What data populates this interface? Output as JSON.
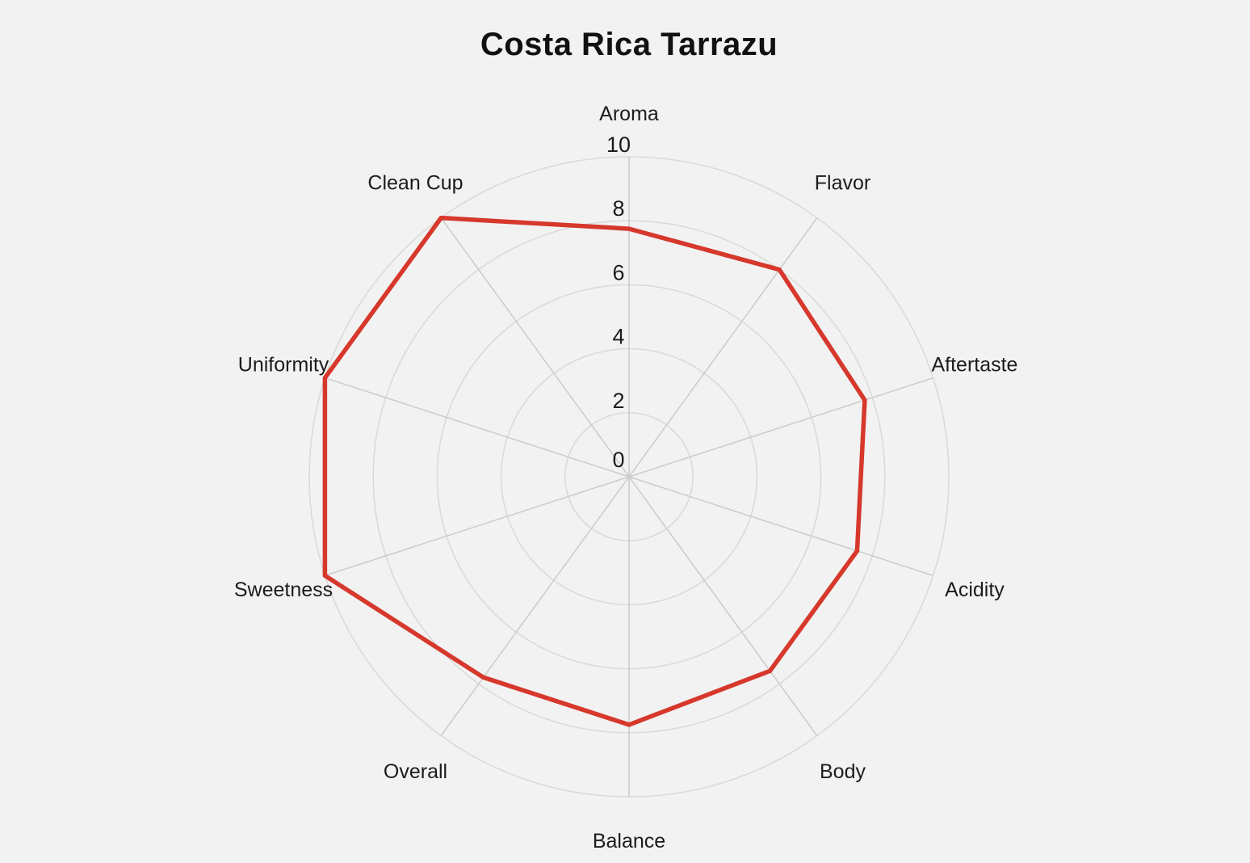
{
  "chart_data": {
    "type": "radar",
    "title": "Costa Rica Tarrazu",
    "categories": [
      "Aroma",
      "Flavor",
      "Aftertaste",
      "Acidity",
      "Body",
      "Balance",
      "Overall",
      "Sweetness",
      "Uniformity",
      "Clean Cup"
    ],
    "series": [
      {
        "name": "Costa Rica Tarrazu",
        "values": [
          7.75,
          8,
          7.75,
          7.5,
          7.5,
          7.75,
          7.75,
          10,
          10,
          10
        ]
      }
    ],
    "scale": {
      "min": 0,
      "max": 10,
      "ticks": [
        0,
        2,
        4,
        6,
        8,
        10
      ]
    },
    "grid_shape": "circular",
    "grid_on": true,
    "legend_position": "none",
    "fill": "none",
    "colors": {
      "line": "#d7382c",
      "ring": "#dadada",
      "spoke": "#cdcdcd",
      "text": "#1c1c1c",
      "background": "#f2f2f2"
    }
  }
}
